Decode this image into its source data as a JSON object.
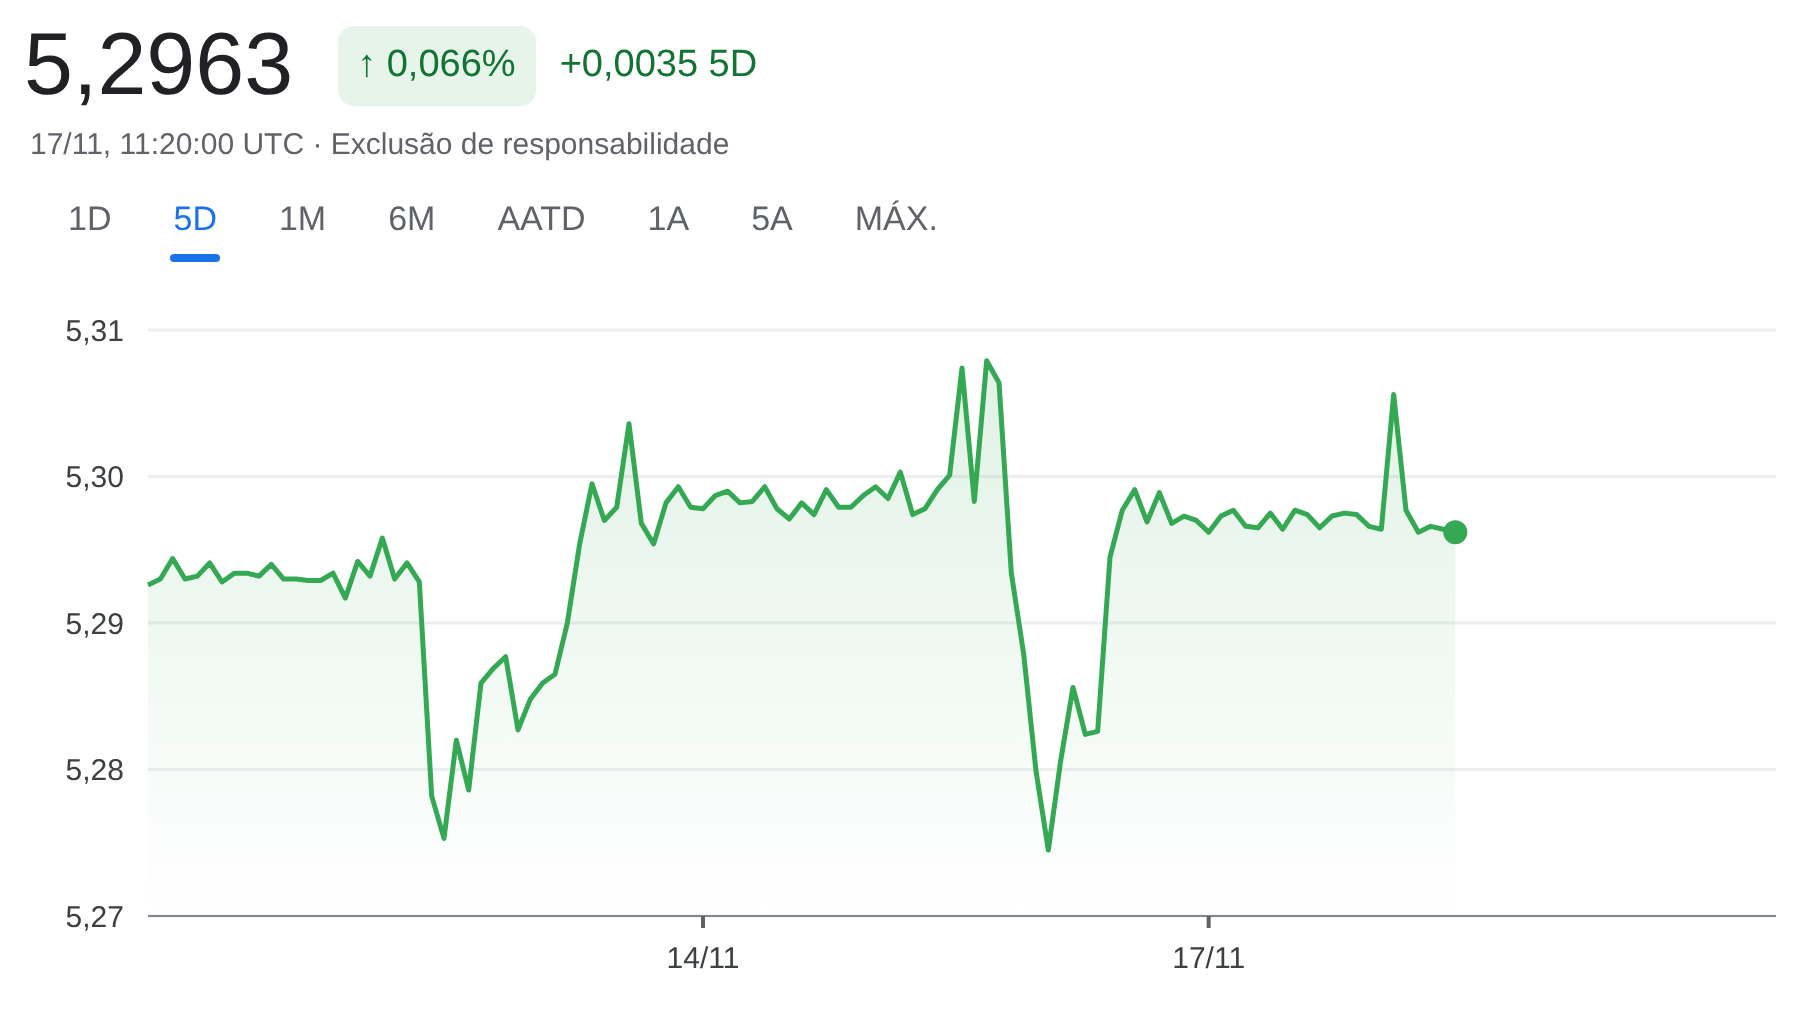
{
  "chart_data": {
    "type": "area",
    "title": "5,2963",
    "subtitle": "17/11, 11:20:00 UTC · Exclusão de responsabilidade",
    "annotations": [
      "↑ 0,066%",
      "+0,0035 5D",
      "1D",
      "5D",
      "1M",
      "6M",
      "AATD",
      "1A",
      "5A",
      "MÁX."
    ],
    "categories": [
      null,
      null,
      null,
      null,
      null,
      null,
      null,
      null,
      null,
      null,
      null,
      null,
      null,
      null,
      null,
      null,
      null,
      null,
      null,
      null,
      null,
      null,
      null,
      null,
      null,
      null,
      null,
      null,
      null,
      null,
      null,
      null,
      null,
      null,
      null,
      null,
      null,
      null,
      null,
      null,
      null,
      null,
      null,
      null,
      null,
      "14/11",
      null,
      null,
      null,
      null,
      null,
      null,
      null,
      null,
      null,
      null,
      null,
      null,
      null,
      null,
      null,
      null,
      null,
      null,
      null,
      null,
      null,
      null,
      null,
      null,
      null,
      null,
      null,
      null,
      null,
      null,
      null,
      null,
      null,
      null,
      null,
      null,
      null,
      null,
      null,
      null,
      "17/11",
      null,
      null,
      null,
      null,
      null,
      null,
      null,
      null,
      null,
      null,
      null,
      null,
      null,
      null,
      null,
      null,
      null,
      null,
      null,
      null,
      null,
      null,
      null,
      null,
      null,
      null,
      null,
      null,
      null,
      null,
      null,
      null,
      null,
      null,
      null,
      null,
      null,
      null,
      null,
      null,
      null,
      null,
      null,
      null,
      null,
      null
    ],
    "series": [
      {
        "color": "#34a853",
        "values": [
          5.2926,
          5.293,
          5.2944,
          5.293,
          5.2932,
          5.2941,
          5.2928,
          5.2934,
          5.2934,
          5.2932,
          5.294,
          5.293,
          5.293,
          5.2929,
          5.2929,
          5.2934,
          5.2917,
          5.2942,
          5.2932,
          5.2958,
          5.293,
          5.2941,
          5.2928,
          5.2782,
          5.2753,
          5.282,
          5.2786,
          5.2859,
          5.2869,
          5.2877,
          5.2827,
          5.2848,
          5.2859,
          5.2865,
          5.29,
          5.2954,
          5.2995,
          5.297,
          5.2979,
          5.3036,
          5.2968,
          5.2954,
          5.2982,
          5.2993,
          5.2979,
          5.2978,
          5.2987,
          5.299,
          5.2982,
          5.2983,
          5.2993,
          5.2978,
          5.2971,
          5.2982,
          5.2974,
          5.2991,
          5.2979,
          5.2979,
          5.2987,
          5.2993,
          5.2985,
          5.3003,
          5.2974,
          5.2978,
          5.2991,
          5.3001,
          5.3074,
          5.2983,
          5.3079,
          5.3064,
          5.2934,
          5.2879,
          5.2799,
          5.2745,
          5.2806,
          5.2856,
          5.2824,
          5.2826,
          5.2945,
          5.2977,
          5.2991,
          5.2969,
          5.2989,
          5.2968,
          5.2973,
          5.297,
          5.2962,
          5.2973,
          5.2977,
          5.2966,
          5.2965,
          5.2975,
          5.2964,
          5.2977,
          5.2974,
          5.2965,
          5.2973,
          5.2975,
          5.2974,
          5.2966,
          5.2964,
          5.3056,
          5.2977,
          5.2962,
          5.2966,
          5.2964,
          5.2962,
          null,
          null,
          null,
          null,
          null,
          null,
          null,
          null,
          null,
          null,
          null,
          null,
          null,
          null,
          null,
          null,
          null,
          null,
          null,
          null,
          null,
          null,
          null,
          null,
          null,
          null
        ]
      }
    ],
    "ylim": [
      5.27,
      5.31
    ],
    "yticks": [
      {
        "value": 5.27,
        "label": "5,27"
      },
      {
        "value": 5.28,
        "label": "5,28"
      },
      {
        "value": 5.29,
        "label": "5,29"
      },
      {
        "value": 5.3,
        "label": "5,30"
      },
      {
        "value": 5.31,
        "label": "5,31"
      }
    ],
    "grid": "y",
    "legend": false
  }
}
